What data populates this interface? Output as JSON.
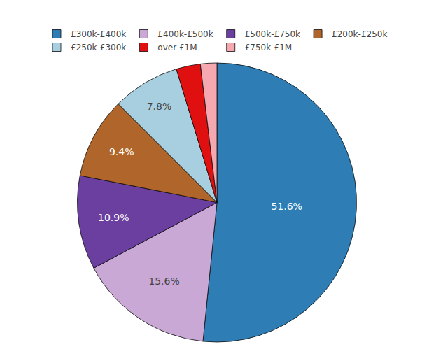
{
  "chart_data": {
    "type": "pie",
    "categories": [
      "£300k-£400k",
      "£400k-£500k",
      "£500k-£750k",
      "£200k-£250k",
      "£250k-£300k",
      "over £1M",
      "£750k-£1M"
    ],
    "values": [
      51.6,
      15.6,
      10.9,
      9.4,
      7.8,
      2.8,
      1.9
    ],
    "colors": [
      "#2e7db5",
      "#c9a8d6",
      "#6b3fa0",
      "#b0652a",
      "#a8cfe0",
      "#e01010",
      "#f5a8b0"
    ],
    "value_labels": [
      "51.6%",
      "15.6%",
      "10.9%",
      "9.4%",
      "7.8%",
      null,
      null
    ],
    "data_labels": true,
    "legend": "top"
  }
}
